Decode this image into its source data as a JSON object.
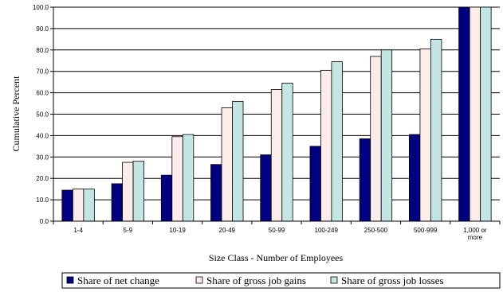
{
  "chart_data": {
    "type": "bar",
    "xlabel": "Size Class - Number of Employees",
    "ylabel": "Cumulative Percent",
    "ylim": [
      0,
      100
    ],
    "ytick_step": 10,
    "ytick_labels": [
      "0.0",
      "10.0",
      "20.0",
      "30.0",
      "40.0",
      "50.0",
      "60.0",
      "70.0",
      "80.0",
      "90.0",
      "100.0"
    ],
    "grid": true,
    "legend_position": "bottom",
    "categories": [
      [
        "1-4"
      ],
      [
        "5-9"
      ],
      [
        "10-19"
      ],
      [
        "20-49"
      ],
      [
        "50-99"
      ],
      [
        "100-249"
      ],
      [
        "250-500"
      ],
      [
        "500-999"
      ],
      [
        "1,000 or",
        "more"
      ]
    ],
    "series": [
      {
        "name": "Share of net change",
        "color": "#000080",
        "values": [
          14.5,
          17.5,
          21.5,
          26.5,
          31.0,
          35.0,
          38.5,
          40.5,
          100.0
        ]
      },
      {
        "name": "Share of gross job gains",
        "color": "#fcecea",
        "values": [
          15.0,
          27.5,
          39.5,
          53.0,
          61.5,
          70.5,
          77.0,
          80.5,
          100.0
        ]
      },
      {
        "name": "Share of gross job losses",
        "color": "#c4e6e2",
        "values": [
          15.0,
          28.0,
          40.5,
          56.0,
          64.5,
          74.5,
          80.0,
          85.0,
          100.0
        ]
      }
    ]
  }
}
